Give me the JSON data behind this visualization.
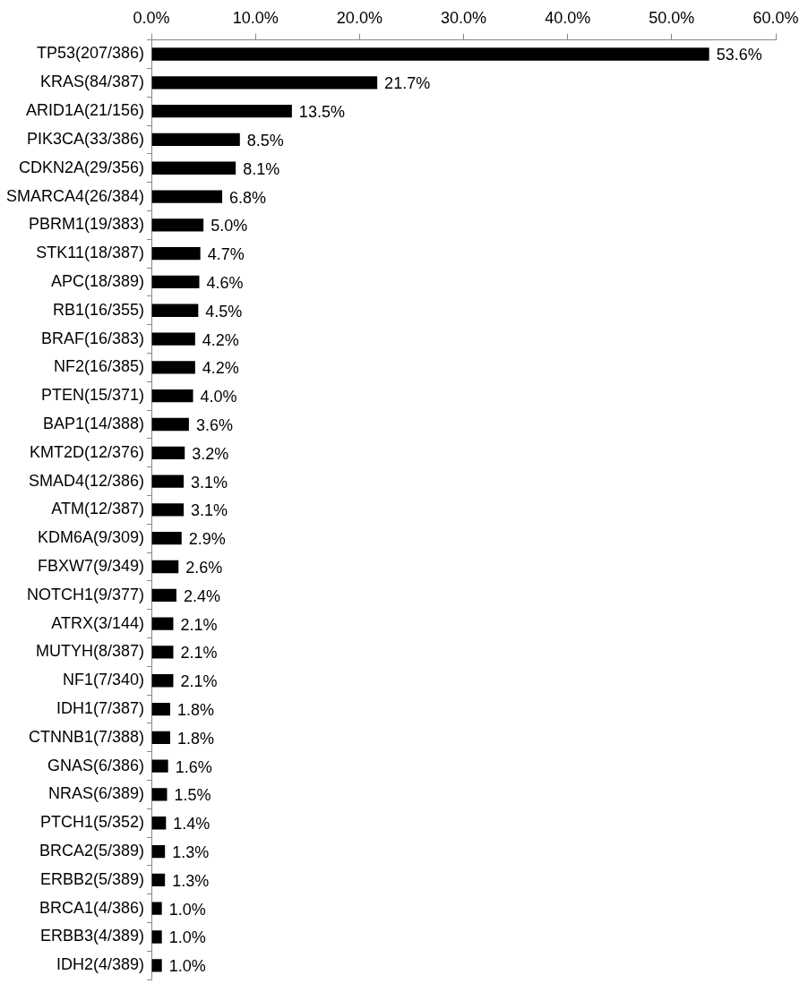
{
  "chart_data": {
    "type": "bar",
    "orientation": "horizontal",
    "categories": [
      "TP53(207/386)",
      "KRAS(84/387)",
      "ARID1A(21/156)",
      "PIK3CA(33/386)",
      "CDKN2A(29/356)",
      "SMARCA4(26/384)",
      "PBRM1(19/383)",
      "STK11(18/387)",
      "APC(18/389)",
      "RB1(16/355)",
      "BRAF(16/383)",
      "NF2(16/385)",
      "PTEN(15/371)",
      "BAP1(14/388)",
      "KMT2D(12/376)",
      "SMAD4(12/386)",
      "ATM(12/387)",
      "KDM6A(9/309)",
      "FBXW7(9/349)",
      "NOTCH1(9/377)",
      "ATRX(3/144)",
      "MUTYH(8/387)",
      "NF1(7/340)",
      "IDH1(7/387)",
      "CTNNB1(7/388)",
      "GNAS(6/386)",
      "NRAS(6/389)",
      "PTCH1(5/352)",
      "BRCA2(5/389)",
      "ERBB2(5/389)",
      "BRCA1(4/386)",
      "ERBB3(4/389)",
      "IDH2(4/389)"
    ],
    "values": [
      53.6,
      21.7,
      13.5,
      8.5,
      8.1,
      6.8,
      5.0,
      4.7,
      4.6,
      4.5,
      4.2,
      4.2,
      4.0,
      3.6,
      3.2,
      3.1,
      3.1,
      2.9,
      2.6,
      2.4,
      2.1,
      2.1,
      2.1,
      1.8,
      1.8,
      1.6,
      1.5,
      1.4,
      1.3,
      1.3,
      1.0,
      1.0,
      1.0
    ],
    "value_labels": [
      "53.6%",
      "21.7%",
      "13.5%",
      "8.5%",
      "8.1%",
      "6.8%",
      "5.0%",
      "4.7%",
      "4.6%",
      "4.5%",
      "4.2%",
      "4.2%",
      "4.0%",
      "3.6%",
      "3.2%",
      "3.1%",
      "3.1%",
      "2.9%",
      "2.6%",
      "2.4%",
      "2.1%",
      "2.1%",
      "2.1%",
      "1.8%",
      "1.8%",
      "1.6%",
      "1.5%",
      "1.4%",
      "1.3%",
      "1.3%",
      "1.0%",
      "1.0%",
      "1.0%"
    ],
    "color": "#000000",
    "xlim": [
      0,
      60
    ],
    "xticks": [
      {
        "value": 0,
        "label": "0.0%"
      },
      {
        "value": 10,
        "label": "10.0%"
      },
      {
        "value": 20,
        "label": "20.0%"
      },
      {
        "value": 30,
        "label": "30.0%"
      },
      {
        "value": 40,
        "label": "40.0%"
      },
      {
        "value": 50,
        "label": "50.0%"
      },
      {
        "value": 60,
        "label": "60.0%"
      }
    ],
    "grid": false,
    "legend": false
  }
}
